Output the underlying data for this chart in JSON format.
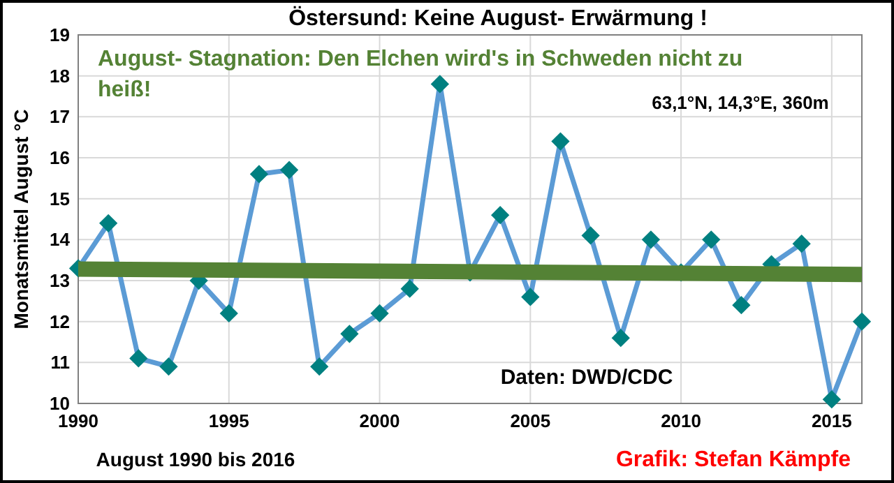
{
  "chart_data": {
    "type": "line",
    "title": "Östersund: Keine August- Erwärmung !",
    "subtitle": "August- Stagnation: Den Elchen wird's in Schweden nicht zu heiß!",
    "xlabel": "August 1990 bis 2016",
    "ylabel": "Monatsmittel August °C",
    "annotations": [
      "63,1°N, 14,3°E, 360m",
      "Daten: DWD/CDC",
      "Grafik: Stefan Kämpfe"
    ],
    "x": [
      1990,
      1991,
      1992,
      1993,
      1994,
      1995,
      1996,
      1997,
      1998,
      1999,
      2000,
      2001,
      2002,
      2003,
      2004,
      2005,
      2006,
      2007,
      2008,
      2009,
      2010,
      2011,
      2012,
      2013,
      2014,
      2015,
      2016
    ],
    "series": [
      {
        "color": "#5b9bd5",
        "marker": "diamond",
        "values": [
          13.3,
          14.4,
          11.1,
          10.9,
          13.0,
          12.2,
          15.6,
          15.7,
          10.9,
          11.7,
          12.2,
          12.8,
          17.8,
          13.2,
          14.6,
          12.6,
          16.4,
          14.1,
          11.6,
          14.0,
          13.2,
          14.0,
          12.4,
          13.4,
          13.9,
          10.1,
          12.0
        ]
      },
      {
        "type": "line",
        "color": "#548235",
        "marker": "none",
        "x": [
          1990,
          2016
        ],
        "values": [
          13.28,
          13.15
        ]
      }
    ],
    "xlim": [
      1990,
      2016
    ],
    "ylim": [
      10,
      19
    ],
    "xticks": [
      1990,
      1995,
      2000,
      2005,
      2010,
      2015
    ],
    "yticks": [
      10,
      11,
      12,
      13,
      14,
      15,
      16,
      17,
      18,
      19
    ],
    "grid": true,
    "line_style": "solid"
  }
}
